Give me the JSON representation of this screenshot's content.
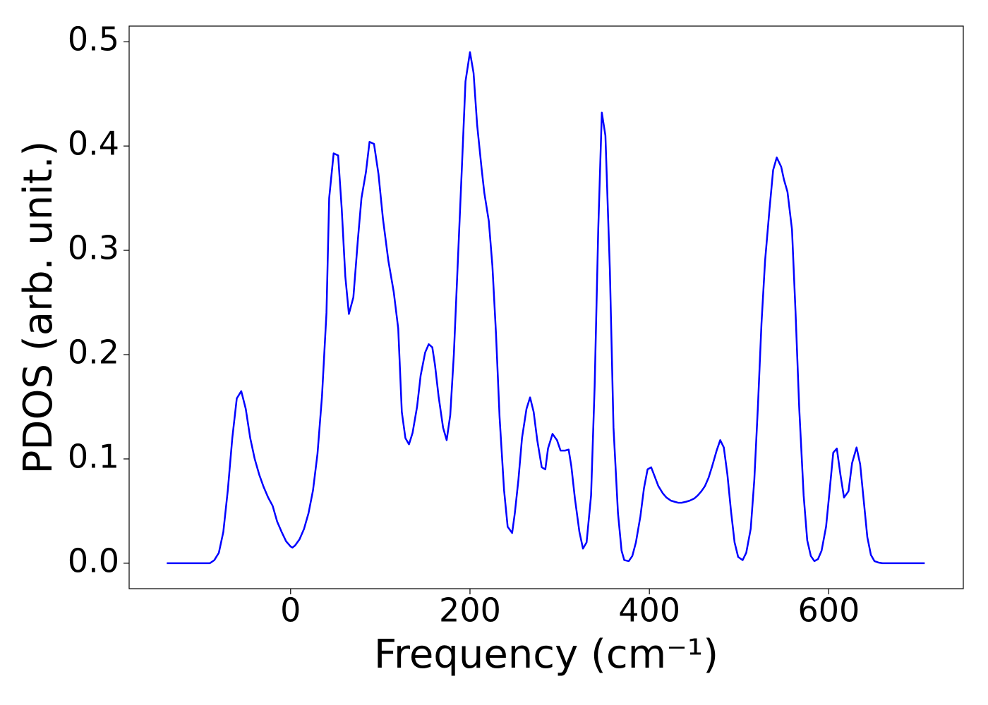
{
  "chart_data": {
    "type": "line",
    "xlabel": "Frequency (cm⁻¹)",
    "ylabel": "PDOS (arb. unit.)",
    "x": [
      -138,
      -90,
      -85,
      -80,
      -75,
      -70,
      -65,
      -60,
      -55,
      -50,
      -45,
      -40,
      -35,
      -30,
      -25,
      -20,
      -15,
      -10,
      -5,
      0,
      2,
      5,
      10,
      15,
      20,
      25,
      30,
      35,
      40,
      43,
      48,
      53,
      57,
      61,
      65,
      70,
      75,
      79,
      84,
      88,
      93,
      98,
      103,
      109,
      115,
      120,
      124,
      128,
      132,
      136,
      141,
      145,
      150,
      154,
      158,
      161,
      165,
      170,
      174,
      178,
      182,
      186,
      191,
      195,
      200,
      204,
      208,
      213,
      216,
      221,
      225,
      229,
      233,
      238,
      242,
      247,
      250,
      254,
      258,
      263,
      267,
      271,
      275,
      280,
      284,
      287,
      292,
      297,
      301,
      306,
      310,
      313,
      317,
      322,
      326,
      330,
      335,
      339,
      343,
      347,
      351,
      356,
      360,
      365,
      369,
      372,
      377,
      381,
      385,
      390,
      394,
      398,
      402,
      406,
      410,
      415,
      419,
      424,
      428,
      432,
      436,
      441,
      445,
      450,
      454,
      458,
      462,
      466,
      470,
      475,
      479,
      483,
      487,
      491,
      495,
      499,
      504,
      508,
      513,
      517,
      521,
      525,
      529,
      534,
      538,
      542,
      547,
      550,
      554,
      559,
      563,
      567,
      572,
      576,
      580,
      584,
      588,
      592,
      597,
      601,
      605,
      609,
      613,
      617,
      622,
      626,
      631,
      635,
      639,
      643,
      647,
      651,
      656,
      660,
      707
    ],
    "series": [
      {
        "name": "PDOS",
        "color": "#0000ff",
        "values": [
          0,
          0,
          0.003,
          0.01,
          0.03,
          0.07,
          0.12,
          0.158,
          0.165,
          0.148,
          0.12,
          0.1,
          0.085,
          0.073,
          0.063,
          0.055,
          0.04,
          0.03,
          0.021,
          0.016,
          0.015,
          0.017,
          0.023,
          0.033,
          0.048,
          0.07,
          0.105,
          0.16,
          0.24,
          0.35,
          0.393,
          0.391,
          0.34,
          0.275,
          0.239,
          0.255,
          0.31,
          0.35,
          0.375,
          0.404,
          0.402,
          0.373,
          0.33,
          0.29,
          0.26,
          0.225,
          0.145,
          0.12,
          0.114,
          0.125,
          0.15,
          0.18,
          0.202,
          0.21,
          0.207,
          0.19,
          0.16,
          0.13,
          0.118,
          0.142,
          0.2,
          0.28,
          0.38,
          0.462,
          0.49,
          0.47,
          0.42,
          0.378,
          0.355,
          0.328,
          0.285,
          0.22,
          0.14,
          0.07,
          0.035,
          0.029,
          0.048,
          0.08,
          0.12,
          0.148,
          0.159,
          0.145,
          0.118,
          0.092,
          0.09,
          0.11,
          0.124,
          0.118,
          0.108,
          0.108,
          0.109,
          0.093,
          0.062,
          0.03,
          0.014,
          0.02,
          0.065,
          0.17,
          0.32,
          0.432,
          0.41,
          0.28,
          0.13,
          0.048,
          0.012,
          0.003,
          0.002,
          0.007,
          0.02,
          0.045,
          0.072,
          0.09,
          0.092,
          0.083,
          0.074,
          0.067,
          0.063,
          0.06,
          0.059,
          0.058,
          0.058,
          0.059,
          0.06,
          0.062,
          0.065,
          0.069,
          0.074,
          0.082,
          0.093,
          0.108,
          0.118,
          0.111,
          0.085,
          0.05,
          0.02,
          0.006,
          0.003,
          0.01,
          0.033,
          0.08,
          0.15,
          0.23,
          0.29,
          0.34,
          0.377,
          0.389,
          0.38,
          0.368,
          0.356,
          0.32,
          0.24,
          0.15,
          0.065,
          0.022,
          0.007,
          0.002,
          0.004,
          0.012,
          0.035,
          0.07,
          0.106,
          0.11,
          0.085,
          0.063,
          0.069,
          0.096,
          0.111,
          0.095,
          0.06,
          0.025,
          0.008,
          0.002,
          0.0005,
          0,
          0
        ]
      }
    ],
    "xlim": [
      -180,
      750
    ],
    "ylim": [
      -0.0244,
      0.515
    ],
    "xticks": [
      0,
      200,
      400,
      600
    ],
    "yticks": [
      {
        "value": 0,
        "label": "0.0"
      },
      0.1,
      0.2,
      0.3,
      0.4,
      0.5
    ]
  }
}
